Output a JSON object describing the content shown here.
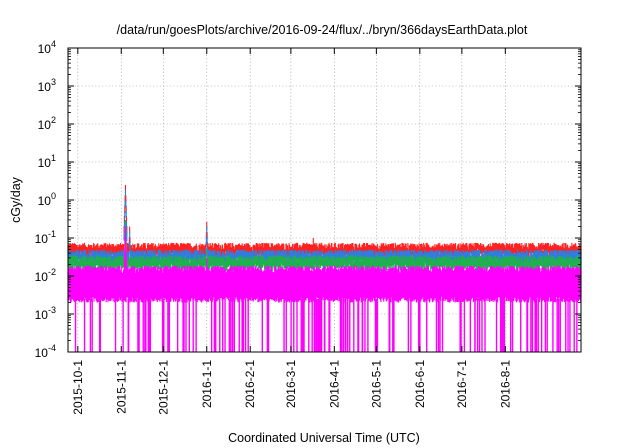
{
  "chart_data": {
    "type": "line",
    "title": "/data/run/goesPlots/archive/2016-09-24/flux/../bryn/366daysEarthData.plot",
    "xlabel": "Coordinated Universal Time (UTC)",
    "ylabel": "cGy/day",
    "y_scale": "log",
    "ylim": [
      0.0001,
      10000
    ],
    "y_ticks": [
      {
        "value": 0.0001,
        "base": "10",
        "exp": "-4"
      },
      {
        "value": 0.001,
        "base": "10",
        "exp": "-3"
      },
      {
        "value": 0.01,
        "base": "10",
        "exp": "-2"
      },
      {
        "value": 0.1,
        "base": "10",
        "exp": "-1"
      },
      {
        "value": 1,
        "base": "10",
        "exp": "0"
      },
      {
        "value": 10,
        "base": "10",
        "exp": "1"
      },
      {
        "value": 100,
        "base": "10",
        "exp": "2"
      },
      {
        "value": 1000,
        "base": "10",
        "exp": "3"
      },
      {
        "value": 10000,
        "base": "10",
        "exp": "4"
      }
    ],
    "xlim": [
      "2015-09-24",
      "2016-09-24"
    ],
    "x_ticks": [
      "2015-10-1",
      "2015-11-1",
      "2015-12-1",
      "2016-1-1",
      "2016-2-1",
      "2016-3-1",
      "2016-4-1",
      "2016-5-1",
      "2016-6-1",
      "2016-7-1",
      "2016-8-1"
    ],
    "x_tick_dates": [
      "2015-10-01",
      "2015-11-01",
      "2015-12-01",
      "2016-01-01",
      "2016-02-01",
      "2016-03-01",
      "2016-04-01",
      "2016-05-01",
      "2016-06-01",
      "2016-07-01",
      "2016-08-01"
    ],
    "grid": true,
    "legend": "none",
    "series": [
      {
        "color": "#ff2020",
        "baseline": 0.06,
        "points": [
          [
            "2015-11-04",
            2.5
          ],
          [
            "2015-11-07",
            0.2
          ],
          [
            "2016-01-01",
            0.27
          ],
          [
            "2016-03-17",
            0.1
          ]
        ]
      },
      {
        "color": "#2f7de0",
        "baseline": 0.04,
        "points": [
          [
            "2015-11-04",
            1.8
          ],
          [
            "2015-11-07",
            0.15
          ],
          [
            "2016-01-01",
            0.2
          ]
        ]
      },
      {
        "color": "#20b050",
        "baseline": 0.028,
        "points": [
          [
            "2015-11-04",
            0.3
          ],
          [
            "2016-01-01",
            0.05
          ]
        ]
      },
      {
        "color": "#ff00ff",
        "baseline": 0.015,
        "floor": 0.0025,
        "points": [
          [
            "2015-11-04",
            0.2
          ],
          [
            "2016-01-01",
            0.03
          ]
        ]
      }
    ]
  }
}
